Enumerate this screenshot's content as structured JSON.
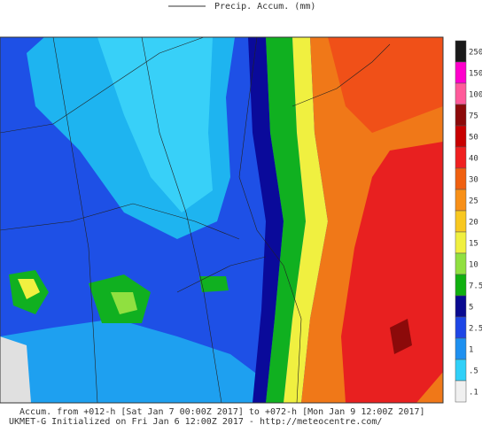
{
  "legend_title": "Precip. Accum. (mm)",
  "colorbar": {
    "labels": [
      "250",
      "150",
      "100",
      "75",
      "50",
      "40",
      "30",
      "25",
      "20",
      "15",
      "10",
      "7.5",
      "5",
      "2.5",
      "1",
      ".5",
      ".1"
    ],
    "colors": [
      "#1a1a1a",
      "#ff00cc",
      "#ff5a9a",
      "#8c0a0a",
      "#c80000",
      "#f02020",
      "#f06010",
      "#f89018",
      "#f8c820",
      "#f0f040",
      "#90e040",
      "#10b010",
      "#0a0a90",
      "#1e46e6",
      "#1e90f0",
      "#30d0f8",
      "#f0f0f0"
    ]
  },
  "footer": {
    "line1": "Accum. from +012-h [Sat Jan 7 00:00Z 2017] to +072-h [Mon Jan 9 12:00Z 2017]",
    "line2": "UKMET-G Initialized on Fri Jan 6 12:00Z 2017 - http://meteocentre.com/"
  }
}
